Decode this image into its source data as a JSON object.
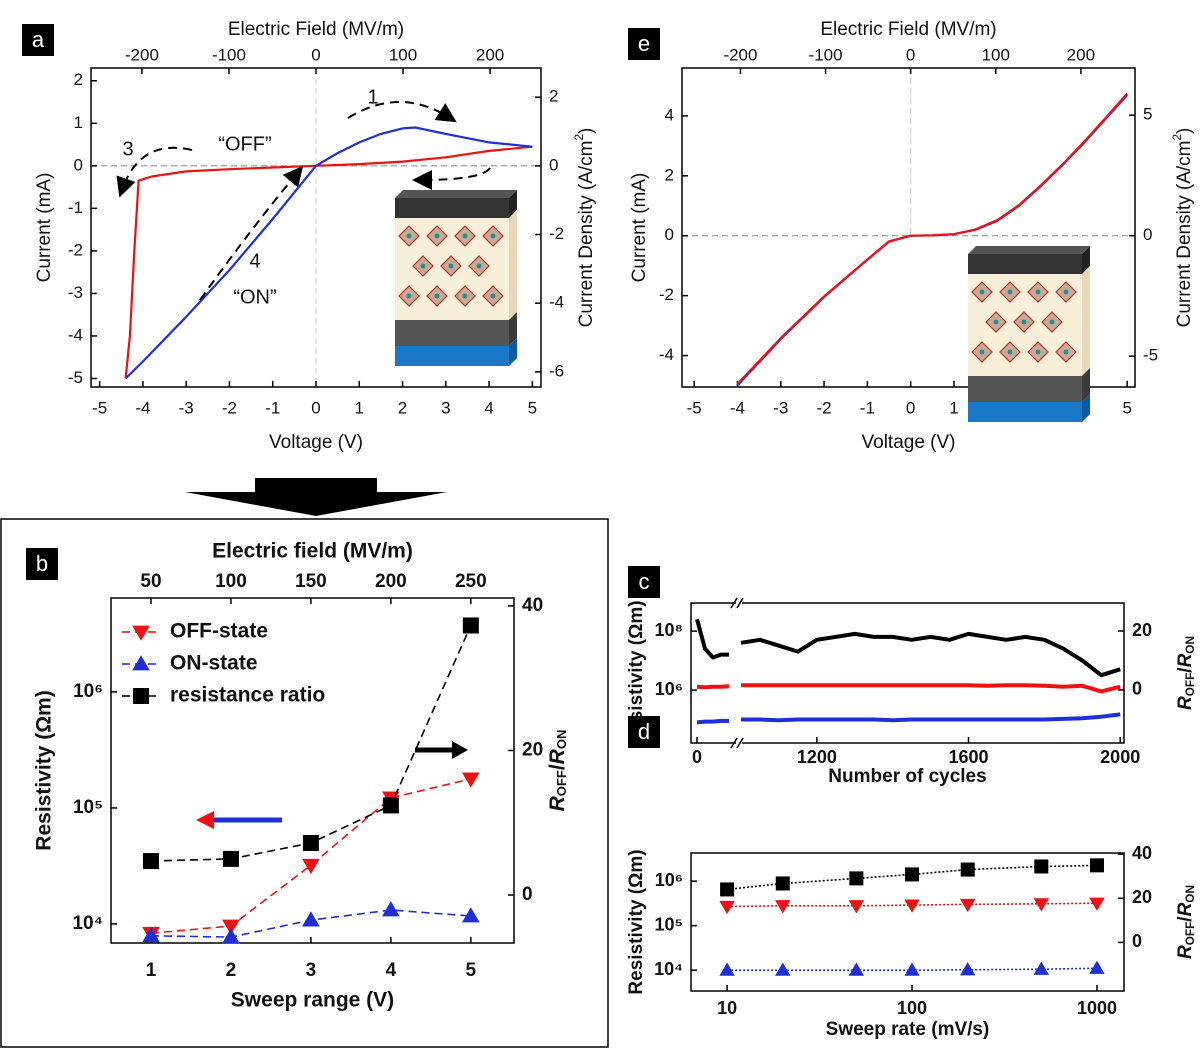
{
  "chart_data": [
    {
      "type": "line",
      "panel": "a",
      "xlabel": "Voltage (V)",
      "ylabel": "Current (mA)",
      "x2label": "Electric Field (MV/m)",
      "y2label": [
        "Current Density (A/cm",
        "2",
        ")"
      ],
      "xlim": [
        -5.2,
        5.2
      ],
      "xticks": [
        -5,
        -4,
        -3,
        -2,
        -1,
        0,
        1,
        2,
        3,
        4,
        5
      ],
      "ylim": [
        -5.2,
        2.3
      ],
      "yticks": [
        -5,
        -4,
        -3,
        -2,
        -1,
        0,
        1,
        2
      ],
      "y2lim": [
        -6.44,
        2.85
      ],
      "y2ticks": [
        -6,
        -4,
        -2,
        0,
        2
      ],
      "x2lim": [
        -258.5,
        258.5
      ],
      "x2ticks": [
        -200,
        -100,
        0,
        100,
        200
      ],
      "series": [
        {
          "color": "#ee1111",
          "line": "solid",
          "x": [
            5,
            4,
            3,
            2,
            1,
            0,
            -1,
            -2,
            -3,
            -3.8,
            -4.1,
            -4.2,
            -4.3,
            -4.4
          ],
          "values": [
            0.45,
            0.35,
            0.2,
            0.1,
            0.04,
            0,
            -0.04,
            -0.08,
            -0.13,
            -0.25,
            -0.35,
            -2,
            -4,
            -5
          ]
        },
        {
          "color": "#1f2fd6",
          "line": "solid",
          "x": [
            -4.4,
            -4,
            -3,
            -2,
            -1,
            0,
            0.5,
            1,
            1.5,
            2,
            2.3,
            3,
            4,
            5
          ],
          "values": [
            -5,
            -4.6,
            -3.55,
            -2.45,
            -1.25,
            0,
            0.3,
            0.55,
            0.75,
            0.88,
            0.9,
            0.75,
            0.55,
            0.45
          ]
        }
      ],
      "annotations": [
        "1",
        "2",
        "3",
        "4",
        "“OFF”",
        "“ON”"
      ]
    },
    {
      "type": "line",
      "panel": "e",
      "xlabel": "Voltage (V)",
      "ylabel": "Current (mA)",
      "x2label": "Electric Field (MV/m)",
      "y2label": [
        "Current Density (A/cm",
        "2",
        ")"
      ],
      "xlim": [
        -5.28,
        5.18
      ],
      "xticks": [
        -5,
        -4,
        -3,
        -2,
        -1,
        0,
        1,
        2,
        3,
        4,
        5
      ],
      "ylim": [
        -5.05,
        5.6
      ],
      "yticks": [
        -4,
        -2,
        0,
        2,
        4
      ],
      "y2lim": [
        -6.28,
        6.96
      ],
      "y2ticks": [
        -5,
        0,
        5
      ],
      "x2lim": [
        -268.7,
        263.6
      ],
      "x2ticks": [
        -200,
        -100,
        0,
        100,
        200
      ],
      "series": [
        {
          "color": "#1f2fd6",
          "line": "solid",
          "x": [
            -4,
            -3,
            -2,
            -1,
            -0.5,
            0,
            0.5,
            1,
            1.5,
            2,
            2.5,
            3,
            3.5,
            4,
            4.5,
            5
          ],
          "values": [
            -5,
            -3.45,
            -2.05,
            -0.8,
            -0.2,
            0,
            0.01,
            0.05,
            0.2,
            0.5,
            1.0,
            1.65,
            2.35,
            3.1,
            3.9,
            4.7
          ]
        },
        {
          "color": "#ee1111",
          "line": "solid",
          "x": [
            -4,
            -3,
            -2,
            -1,
            -0.5,
            0,
            0.5,
            1,
            1.5,
            2,
            2.5,
            3,
            3.5,
            4,
            4.5,
            5
          ],
          "values": [
            -4.95,
            -3.42,
            -2.03,
            -0.79,
            -0.19,
            0,
            0.01,
            0.05,
            0.21,
            0.52,
            1.02,
            1.67,
            2.37,
            3.13,
            3.93,
            4.75
          ]
        }
      ]
    },
    {
      "type": "line",
      "panel": "b",
      "xlabel": "Sweep range (V)",
      "ylabel": "Resistivity (Ωm)",
      "x2label": "Electric field (MV/m)",
      "y2label": [
        "R",
        "OFF",
        "/",
        "R",
        "ON"
      ],
      "xlim": [
        0.5,
        5.54
      ],
      "xticks": [
        1,
        2,
        3,
        4,
        5
      ],
      "ylim": [
        6850,
        6450000
      ],
      "ylog": true,
      "yticks": [
        {
          "value": 10000,
          "label": "10⁴"
        },
        {
          "value": 100000,
          "label": "10⁵"
        },
        {
          "value": 1000000,
          "label": "10⁶"
        }
      ],
      "y2lim": [
        -6.64,
        41.1
      ],
      "y2ticks": [
        0,
        20,
        40
      ],
      "x2lim": [
        25,
        277
      ],
      "x2ticks": [
        50,
        100,
        150,
        200,
        250
      ],
      "x": [
        1,
        2,
        3,
        4,
        5
      ],
      "series": [
        {
          "name": "OFF-state",
          "color": "#ee1111",
          "marker": "triangle-down",
          "line": "dashed",
          "values": [
            8300,
            9600,
            32000,
            122000,
            178000
          ]
        },
        {
          "name": "ON-state",
          "color": "#1f2fd6",
          "marker": "triangle-up",
          "line": "dashed",
          "values": [
            7900,
            7700,
            10800,
            13200,
            11700
          ]
        },
        {
          "name": "resistance ratio",
          "color": "#000000",
          "marker": "square",
          "line": "dashed",
          "axis": "y2",
          "values": [
            4.7,
            5.0,
            7.2,
            12.4,
            37.3
          ]
        }
      ],
      "legend": "upper left"
    },
    {
      "type": "line",
      "panel": "c",
      "xlabel": "Number of cycles",
      "ylabel": "Resistivity (Ωm)",
      "y2label": [
        "R",
        "OFF",
        "/",
        "R",
        "ON"
      ],
      "xlim": [
        [
          -15,
          100
        ],
        [
          1000,
          2010
        ]
      ],
      "xticks": [
        0,
        1200,
        1600,
        2000
      ],
      "ylim": [
        16000,
        900000000
      ],
      "ylog": true,
      "yticks": [
        {
          "value": 1000000,
          "label": "10⁶"
        },
        {
          "value": 100000000,
          "label": "10⁸"
        }
      ],
      "y2lim": [
        -18,
        29.5
      ],
      "y2ticks": [
        0,
        20
      ],
      "x": [
        0,
        20,
        40,
        60,
        80,
        1000,
        1050,
        1100,
        1150,
        1200,
        1250,
        1300,
        1350,
        1400,
        1450,
        1500,
        1550,
        1600,
        1650,
        1700,
        1750,
        1800,
        1850,
        1900,
        1950,
        2000
      ],
      "series": [
        {
          "color": "#000000",
          "line": "solid",
          "axis": "y2",
          "values": [
            24,
            14,
            11,
            12,
            12,
            16,
            17,
            15,
            13,
            17,
            18,
            19,
            18,
            18,
            17,
            18,
            17,
            19,
            18,
            17,
            18,
            17,
            14,
            10,
            5,
            7
          ]
        },
        {
          "color": "#ee1111",
          "line": "solid",
          "values": [
            1300000,
            1250000,
            1300000,
            1300000,
            1350000,
            1450000,
            1450000,
            1450000,
            1450000,
            1450000,
            1450000,
            1450000,
            1450000,
            1450000,
            1450000,
            1450000,
            1450000,
            1450000,
            1400000,
            1450000,
            1450000,
            1400000,
            1300000,
            1400000,
            900000,
            1300000
          ]
        },
        {
          "color": "#1f2fd6",
          "line": "solid",
          "values": [
            80000,
            85000,
            85000,
            90000,
            90000,
            100000,
            100000,
            95000,
            100000,
            100000,
            100000,
            100000,
            100000,
            95000,
            100000,
            100000,
            100000,
            100000,
            100000,
            100000,
            100000,
            100000,
            105000,
            110000,
            125000,
            150000
          ]
        }
      ]
    },
    {
      "type": "line",
      "panel": "d",
      "xlabel": "Sweep rate (mV/s)",
      "ylabel": "Resistivity (Ωm)",
      "y2label": [
        "R",
        "OFF",
        "/",
        "R",
        "ON"
      ],
      "xlim": [
        6.38,
        1400
      ],
      "xlog": true,
      "xticks": [
        10,
        100,
        1000
      ],
      "ylim": [
        3400,
        4300000
      ],
      "ylog": true,
      "yticks": [
        {
          "value": 10000,
          "label": "10⁴"
        },
        {
          "value": 100000,
          "label": "10⁵"
        },
        {
          "value": 1000000,
          "label": "10⁶"
        }
      ],
      "y2lim": [
        -22,
        40.5
      ],
      "y2ticks": [
        0,
        20,
        40
      ],
      "x": [
        10,
        20,
        50,
        100,
        200,
        500,
        1000
      ],
      "series": [
        {
          "color": "#000000",
          "marker": "square",
          "line": "dotted",
          "axis": "y2",
          "values": [
            24,
            26.7,
            29,
            30.8,
            33,
            34.4,
            34.9
          ]
        },
        {
          "color": "#ee1111",
          "marker": "triangle-down",
          "line": "dotted",
          "values": [
            270000,
            280000,
            280000,
            290000,
            300000,
            310000,
            320000
          ]
        },
        {
          "color": "#1f2fd6",
          "marker": "triangle-up",
          "line": "dotted",
          "values": [
            10000,
            10000,
            10000,
            10000,
            10200,
            10500,
            11000
          ]
        }
      ]
    }
  ]
}
